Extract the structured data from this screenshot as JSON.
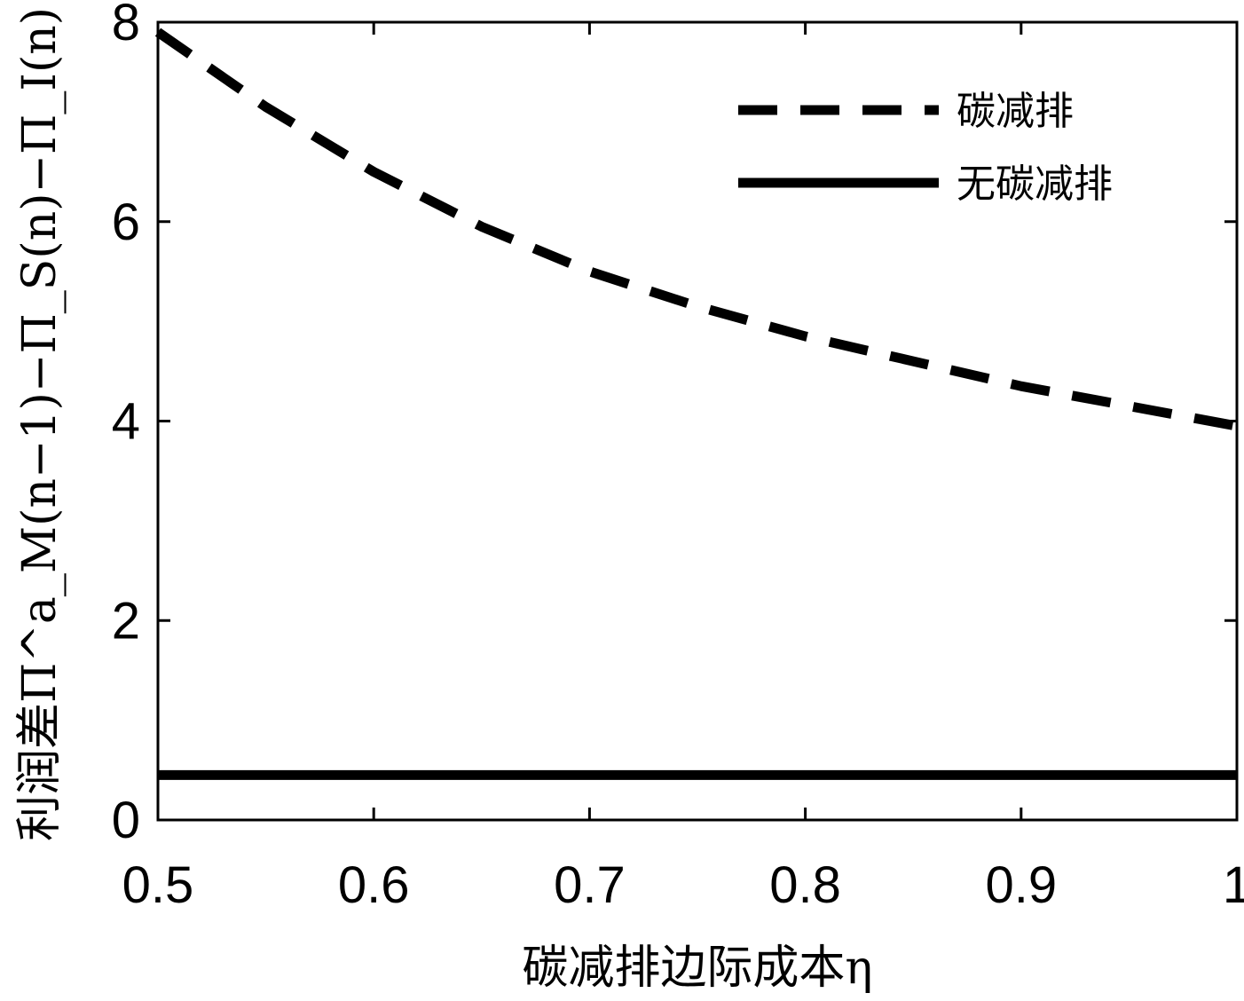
{
  "chart_data": {
    "type": "line",
    "xlabel": "碳减排边际成本η",
    "ylabel": "利润差Π^a_M(n−1)−Π_S(n)−Π_I(n)",
    "xlim": [
      0.5,
      1.0
    ],
    "ylim": [
      0,
      8
    ],
    "xticks": [
      0.5,
      0.6,
      0.7,
      0.8,
      0.9,
      1.0
    ],
    "xtick_labels": [
      "0.5",
      "0.6",
      "0.7",
      "0.8",
      "0.9",
      "1"
    ],
    "yticks": [
      0,
      2,
      4,
      6,
      8
    ],
    "ytick_labels": [
      "0",
      "2",
      "4",
      "6",
      "8"
    ],
    "grid": false,
    "legend_position": "top-right",
    "x": [
      0.5,
      0.55,
      0.6,
      0.65,
      0.7,
      0.75,
      0.8,
      0.85,
      0.9,
      0.95,
      1.0
    ],
    "series": [
      {
        "name": "碳减排",
        "style": "dashed",
        "color": "#000000",
        "values": [
          7.9,
          7.15,
          6.5,
          5.95,
          5.5,
          5.15,
          4.85,
          4.6,
          4.35,
          4.15,
          3.95
        ]
      },
      {
        "name": "无碳减排",
        "style": "solid",
        "color": "#000000",
        "values": [
          0.45,
          0.45,
          0.45,
          0.45,
          0.45,
          0.45,
          0.45,
          0.45,
          0.45,
          0.45,
          0.45
        ]
      }
    ]
  }
}
